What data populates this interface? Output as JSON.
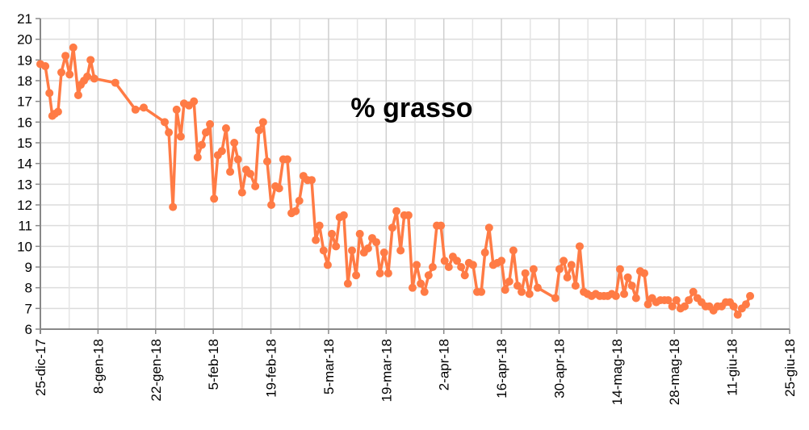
{
  "chart_data": {
    "type": "line",
    "title": "% grasso",
    "xlabel": "",
    "ylabel": "",
    "x_unit": "days since 25-dic-17",
    "xlim": [
      0,
      182
    ],
    "ylim": [
      6,
      21
    ],
    "yticks": [
      6,
      7,
      8,
      9,
      10,
      11,
      12,
      13,
      14,
      15,
      16,
      17,
      18,
      19,
      20,
      21
    ],
    "xticks": [
      {
        "day": 0,
        "label": "25-dic-17"
      },
      {
        "day": 14,
        "label": "8-gen-18"
      },
      {
        "day": 28,
        "label": "22-gen-18"
      },
      {
        "day": 42,
        "label": "5-feb-18"
      },
      {
        "day": 56,
        "label": "19-feb-18"
      },
      {
        "day": 70,
        "label": "5-mar-18"
      },
      {
        "day": 84,
        "label": "19-mar-18"
      },
      {
        "day": 98,
        "label": "2-apr-18"
      },
      {
        "day": 112,
        "label": "16-apr-18"
      },
      {
        "day": 126,
        "label": "30-apr-18"
      },
      {
        "day": 140,
        "label": "14-mag-18"
      },
      {
        "day": 154,
        "label": "28-mag-18"
      },
      {
        "day": 168,
        "label": "11-giu-18"
      },
      {
        "day": 182,
        "label": "25-giu-18"
      }
    ],
    "grid": true,
    "legend": "none",
    "series": [
      {
        "name": "% grasso",
        "color": "#ff7b45",
        "x": [
          0,
          1.2,
          2.2,
          2.9,
          3.5,
          4.3,
          5.1,
          6.1,
          7.1,
          8.0,
          9.2,
          9.8,
          10.6,
          11.4,
          12.2,
          13.1,
          18.2,
          23.1,
          25.1,
          30.2,
          31.2,
          32.2,
          33.1,
          34.1,
          34.9,
          36.1,
          37.3,
          38.2,
          39.2,
          40.2,
          41.2,
          42.2,
          43.1,
          44.1,
          45.1,
          46.1,
          47.1,
          48.0,
          49.0,
          50.0,
          51.0,
          52.2,
          53.1,
          54.1,
          55.1,
          56.1,
          57.1,
          58.0,
          59.0,
          60.0,
          61.0,
          62.0,
          62.9,
          63.9,
          64.9,
          65.9,
          66.9,
          67.8,
          68.8,
          69.8,
          70.8,
          71.8,
          72.7,
          73.7,
          74.7,
          75.7,
          76.7,
          77.6,
          78.6,
          79.6,
          80.6,
          81.6,
          82.5,
          83.5,
          84.5,
          85.5,
          86.5,
          87.5,
          88.4,
          89.4,
          90.4,
          91.4,
          92.4,
          93.3,
          94.3,
          95.3,
          96.3,
          97.3,
          98.2,
          99.2,
          100.2,
          101.2,
          102.2,
          103.1,
          104.1,
          105.1,
          106.1,
          107.1,
          108.0,
          109.0,
          110.0,
          111.0,
          112.0,
          112.9,
          113.9,
          114.9,
          115.9,
          116.9,
          117.8,
          118.8,
          119.8,
          120.8,
          125.1,
          126.1,
          127.1,
          128.0,
          129.0,
          130.0,
          131.0,
          132.0,
          132.9,
          133.9,
          134.9,
          135.9,
          136.9,
          137.8,
          138.8,
          139.8,
          140.8,
          141.8,
          142.7,
          143.7,
          144.7,
          145.7,
          146.7,
          147.6,
          148.6,
          149.6,
          150.6,
          151.6,
          152.5,
          153.5,
          154.5,
          155.5,
          156.5,
          157.5,
          158.6,
          159.6,
          160.6,
          161.6,
          162.5,
          163.5,
          164.5,
          165.5,
          166.5,
          167.5,
          168.4,
          169.4,
          170.4,
          171.4,
          172.4
        ],
        "values": [
          18.8,
          18.7,
          17.4,
          16.3,
          16.4,
          16.5,
          18.4,
          19.2,
          18.3,
          19.6,
          17.3,
          17.8,
          18.0,
          18.2,
          19.0,
          18.1,
          17.9,
          16.6,
          16.7,
          16.0,
          15.5,
          11.9,
          16.6,
          15.3,
          16.9,
          16.8,
          17.0,
          14.3,
          14.9,
          15.5,
          15.9,
          12.3,
          14.4,
          14.6,
          15.7,
          13.6,
          15.0,
          14.2,
          12.6,
          13.7,
          13.5,
          12.9,
          15.6,
          16.0,
          14.1,
          12.0,
          12.9,
          12.8,
          14.2,
          14.2,
          11.6,
          11.7,
          12.2,
          13.4,
          13.2,
          13.2,
          10.3,
          11.0,
          9.8,
          9.1,
          10.6,
          10.0,
          11.4,
          11.5,
          8.2,
          9.8,
          8.6,
          10.6,
          9.7,
          9.9,
          10.4,
          10.2,
          8.7,
          9.7,
          8.7,
          10.9,
          11.7,
          9.8,
          11.5,
          11.5,
          8.0,
          9.1,
          8.2,
          7.8,
          8.6,
          9.0,
          11.0,
          11.0,
          9.3,
          9.0,
          9.5,
          9.3,
          9.0,
          8.6,
          9.2,
          9.1,
          7.8,
          7.8,
          9.7,
          10.9,
          9.1,
          9.2,
          9.3,
          7.9,
          8.3,
          9.8,
          8.1,
          7.8,
          8.7,
          7.7,
          8.9,
          8.0,
          7.5,
          8.9,
          9.3,
          8.5,
          9.1,
          8.1,
          10.0,
          7.8,
          7.7,
          7.6,
          7.7,
          7.6,
          7.6,
          7.6,
          7.7,
          7.6,
          8.9,
          7.7,
          8.5,
          8.1,
          7.5,
          8.8,
          8.7,
          7.2,
          7.5,
          7.3,
          7.4,
          7.4,
          7.4,
          7.1,
          7.4,
          7.0,
          7.1,
          7.4,
          7.8,
          7.5,
          7.3,
          7.1,
          7.1,
          6.9,
          7.1,
          7.1,
          7.3,
          7.3,
          7.1,
          6.7,
          7.0,
          7.2,
          7.6
        ]
      }
    ]
  }
}
